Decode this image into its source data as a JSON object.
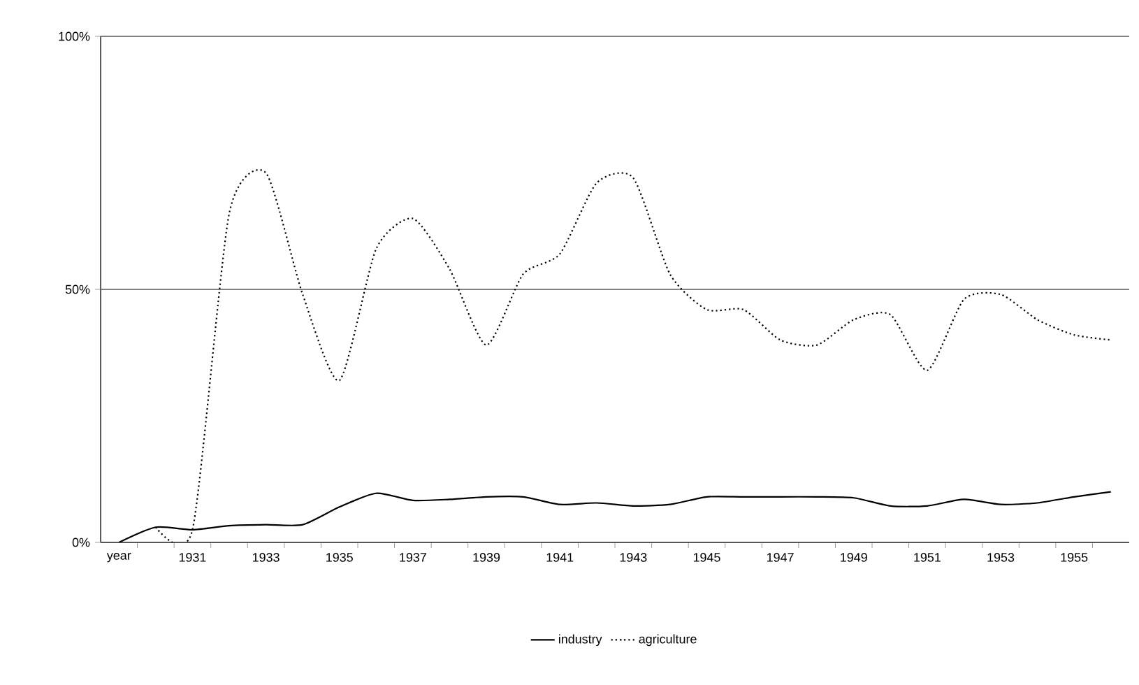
{
  "chart_data": {
    "type": "line",
    "categories": [
      "year",
      null,
      "1931",
      null,
      "1933",
      null,
      "1935",
      null,
      "1937",
      null,
      "1939",
      null,
      "1941",
      null,
      "1943",
      null,
      "1945",
      null,
      "1947",
      null,
      "1949",
      null,
      "1951",
      null,
      "1953",
      null,
      "1955",
      null
    ],
    "series": [
      {
        "name": "industry",
        "color": "#000000",
        "line_style": "solid",
        "values": [
          0,
          3,
          2.5,
          3.3,
          3.5,
          3.5,
          7,
          9.7,
          8.3,
          8.5,
          9,
          9,
          7.5,
          7.8,
          7.2,
          7.5,
          9,
          9,
          9,
          9,
          8.8,
          7.2,
          7.2,
          8.5,
          7.5,
          7.8,
          9,
          10
        ]
      },
      {
        "name": "agriculture",
        "color": "#000000",
        "line_style": "dotted",
        "values": [
          null,
          3,
          2.5,
          65,
          73,
          49,
          32,
          58,
          64,
          54,
          39,
          53,
          57,
          71,
          72,
          53,
          46,
          46,
          40,
          39,
          44,
          45,
          34,
          48,
          49,
          44,
          41,
          40
        ]
      }
    ],
    "ylim": [
      0,
      100
    ],
    "yticks": [
      {
        "value": 0,
        "label": "0%"
      },
      {
        "value": 50,
        "label": "50%"
      },
      {
        "value": 100,
        "label": "100%"
      }
    ],
    "grid": "y",
    "legend": "bottom",
    "marker": "none"
  }
}
